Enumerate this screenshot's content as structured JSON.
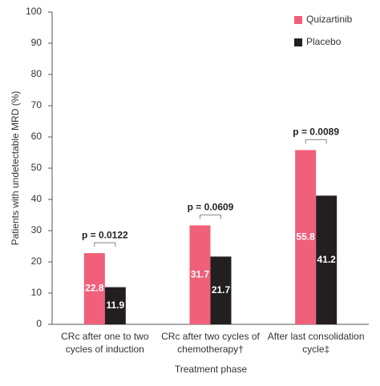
{
  "chart_data": {
    "type": "bar",
    "y_label": "Patients with undetectable MRD (%)",
    "x_label": "Treatment phase",
    "categories": [
      [
        "CRc after one to two",
        "cycles of induction"
      ],
      [
        "CRc after two cycles of",
        "chemotherapy†"
      ],
      [
        "After last consolidation",
        "cycle‡"
      ]
    ],
    "series": [
      {
        "name": "Quizartinib",
        "color": "#f0607a",
        "values": [
          22.8,
          31.7,
          55.8
        ]
      },
      {
        "name": "Placebo",
        "color": "#231f20",
        "values": [
          11.9,
          21.7,
          41.2
        ]
      }
    ],
    "annotations": [
      "p = 0.0122",
      "p = 0.0609",
      "p = 0.0089"
    ],
    "ylim": [
      0,
      100
    ],
    "yticks": [
      0,
      10,
      20,
      30,
      40,
      50,
      60,
      70,
      80,
      90,
      100
    ],
    "grid": false,
    "legend": "top-right"
  }
}
